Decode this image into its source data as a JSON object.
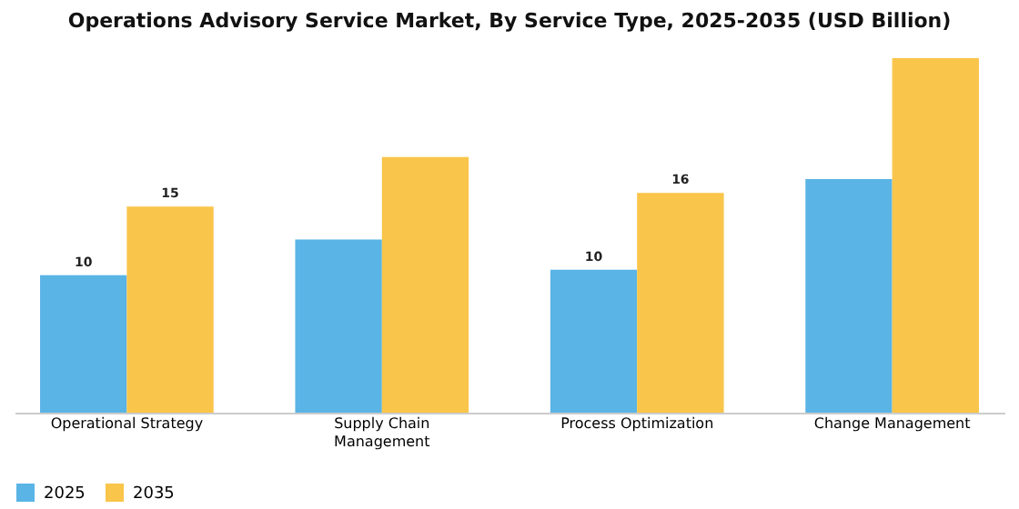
{
  "chart_data": {
    "type": "bar",
    "title": "Operations Advisory Service Market, By Service Type, 2025-2035 (USD Billion)",
    "categories": [
      "Operational Strategy",
      "Supply Chain Management",
      "Process Optimization",
      "Change Management"
    ],
    "series": [
      {
        "name": "2025",
        "color": "#5ab4e5",
        "values": [
          10,
          12.6,
          10.4,
          17
        ],
        "value_labels": [
          "10",
          null,
          "10",
          null
        ]
      },
      {
        "name": "2035",
        "color": "#f9c54a",
        "values": [
          15,
          18.6,
          16,
          25.8
        ],
        "value_labels": [
          "15",
          null,
          "16",
          null
        ]
      }
    ],
    "legend": "bottom",
    "grid": false,
    "tick_labels": "x"
  }
}
